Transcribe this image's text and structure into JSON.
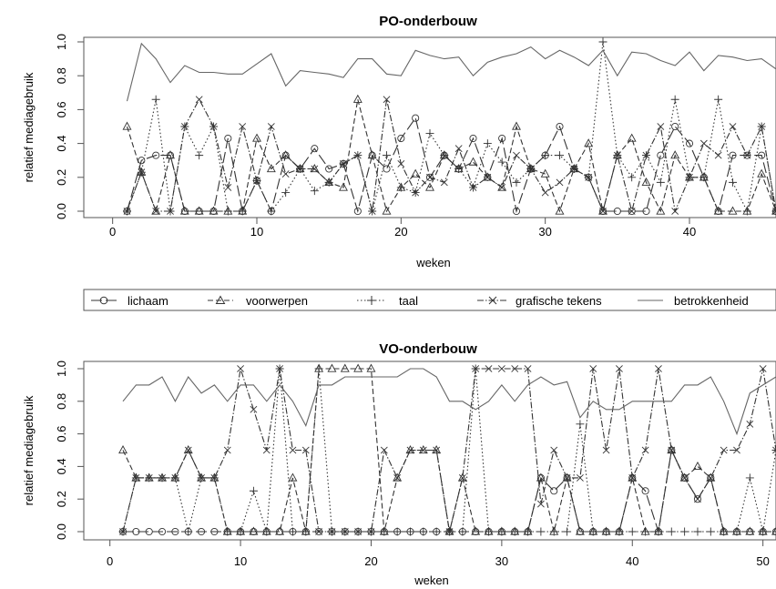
{
  "legend": {
    "items": [
      {
        "name": "lichaam",
        "dash": "12 4",
        "marker": "circle"
      },
      {
        "name": "voorwerpen",
        "dash": "6 3",
        "marker": "triangle"
      },
      {
        "name": "taal",
        "dash": "1.5 2.5",
        "marker": "plus"
      },
      {
        "name": "grafische tekens",
        "dash": "7 2 1.5 2",
        "marker": "cross"
      },
      {
        "name": "betrokkenheid",
        "dash": "",
        "marker": "none"
      }
    ]
  },
  "chart_data": [
    {
      "type": "line",
      "title": "PO-onderbouw",
      "xlabel": "weken",
      "ylabel": "relatief mediagebruik",
      "xlim": [
        -2,
        46
      ],
      "ylim": [
        0,
        1
      ],
      "xticks": [
        0,
        10,
        20,
        30,
        40
      ],
      "yticks": [
        "0.0",
        "0.2",
        "0.4",
        "0.6",
        "0.8",
        "1.0"
      ],
      "x": [
        1,
        2,
        3,
        4,
        5,
        6,
        7,
        8,
        9,
        10,
        11,
        12,
        13,
        14,
        15,
        16,
        17,
        18,
        19,
        20,
        21,
        22,
        23,
        24,
        25,
        26,
        27,
        28,
        29,
        30,
        31,
        32,
        33,
        34,
        35,
        36,
        37,
        38,
        39,
        40,
        41,
        42,
        43,
        44,
        45,
        46
      ],
      "series": [
        {
          "name": "lichaam",
          "values": [
            0,
            0.3,
            0.33,
            0.33,
            0,
            0,
            0,
            0.43,
            0,
            0.18,
            0,
            0.33,
            0.25,
            0.37,
            0.25,
            0.28,
            0,
            0.33,
            0.25,
            0.43,
            0.55,
            0.2,
            0.33,
            0.25,
            0.43,
            0.2,
            0.43,
            0,
            0.25,
            0.33,
            0.5,
            0.25,
            0.2,
            0,
            0,
            0,
            0,
            0.33,
            0.5,
            0.4,
            0.2,
            0,
            0.33,
            0.33,
            0.33,
            0
          ]
        },
        {
          "name": "voorwerpen",
          "values": [
            0.5,
            0.23,
            0,
            0.33,
            0,
            0,
            0,
            0,
            0,
            0.43,
            0.25,
            0.33,
            0.25,
            0.25,
            0.17,
            0.14,
            0.66,
            0.33,
            0,
            0.14,
            0.22,
            0.14,
            0.33,
            0.25,
            0.29,
            0.2,
            0.14,
            0.5,
            0.25,
            0.22,
            0,
            0.25,
            0.4,
            0,
            0.33,
            0.43,
            0.17,
            0,
            0.33,
            0.2,
            0.2,
            0,
            0,
            0,
            0.22,
            0
          ]
        },
        {
          "name": "taal",
          "values": [
            0,
            0.23,
            0.66,
            0,
            0.5,
            0.33,
            0.5,
            0,
            0,
            0.18,
            0,
            0.11,
            0.25,
            0.12,
            0.17,
            0.28,
            0.33,
            0,
            0.33,
            0.14,
            0.11,
            0.46,
            0.33,
            0.25,
            0.14,
            0.4,
            0.29,
            0.17,
            0.25,
            0.33,
            0.33,
            0.25,
            0.2,
            1.0,
            0.33,
            0.2,
            0.33,
            0.17,
            0.66,
            0.2,
            0.2,
            0.66,
            0.17,
            0,
            0.5,
            0
          ]
        },
        {
          "name": "grafische tekens",
          "values": [
            0,
            0.23,
            0,
            0,
            0.5,
            0.66,
            0.5,
            0.14,
            0.5,
            0.18,
            0.5,
            0.22,
            0.25,
            0.25,
            0.17,
            0.28,
            0.33,
            0,
            0.66,
            0.28,
            0.11,
            0.2,
            0.17,
            0.37,
            0.14,
            0.2,
            0.14,
            0.33,
            0.25,
            0.11,
            0.17,
            0.25,
            0.2,
            0,
            0.33,
            0,
            0.33,
            0.5,
            0,
            0.2,
            0.4,
            0.33,
            0.5,
            0.33,
            0.5,
            0
          ]
        },
        {
          "name": "betrokkenheid",
          "values": [
            0.65,
            0.99,
            0.9,
            0.76,
            0.86,
            0.82,
            0.82,
            0.81,
            0.81,
            0.87,
            0.93,
            0.74,
            0.83,
            0.82,
            0.81,
            0.79,
            0.9,
            0.9,
            0.81,
            0.8,
            0.95,
            0.92,
            0.9,
            0.91,
            0.8,
            0.88,
            0.91,
            0.93,
            0.97,
            0.9,
            0.95,
            0.91,
            0.86,
            0.95,
            0.8,
            0.94,
            0.93,
            0.89,
            0.86,
            0.94,
            0.83,
            0.92,
            0.91,
            0.89,
            0.9,
            0.84
          ]
        }
      ]
    },
    {
      "type": "line",
      "title": "VO-onderbouw",
      "xlabel": "weken",
      "ylabel": "relatief mediagebruik",
      "xlim": [
        -2,
        51
      ],
      "ylim": [
        0,
        1
      ],
      "xticks": [
        0,
        10,
        20,
        30,
        40,
        50
      ],
      "yticks": [
        "0.0",
        "0.2",
        "0.4",
        "0.6",
        "0.8",
        "1.0"
      ],
      "x": [
        1,
        2,
        3,
        4,
        5,
        6,
        7,
        8,
        9,
        10,
        11,
        12,
        13,
        14,
        15,
        16,
        17,
        18,
        19,
        20,
        21,
        22,
        23,
        24,
        25,
        26,
        27,
        28,
        29,
        30,
        31,
        32,
        33,
        34,
        35,
        36,
        37,
        38,
        39,
        40,
        41,
        42,
        43,
        44,
        45,
        46,
        47,
        48,
        49,
        50,
        51
      ],
      "series": [
        {
          "name": "lichaam",
          "values": [
            0,
            0,
            0,
            0,
            0,
            0,
            0,
            0,
            0,
            0,
            0,
            0,
            0,
            0,
            0,
            0,
            0,
            0,
            0,
            0,
            0,
            0,
            0,
            0,
            0,
            0,
            0,
            0,
            0,
            0,
            0,
            0,
            0.33,
            0.25,
            0.33,
            0,
            0,
            0,
            0,
            0.33,
            0.25,
            0,
            0.5,
            0.33,
            0.2,
            0.33,
            0,
            0,
            0,
            0,
            0
          ]
        },
        {
          "name": "voorwerpen",
          "values": [
            0.5,
            0.33,
            0.33,
            0.33,
            0.33,
            0.5,
            0.33,
            0.33,
            0,
            0,
            0,
            0,
            0,
            0.33,
            0,
            1.0,
            1.0,
            1.0,
            1.0,
            1.0,
            0,
            0.33,
            0.5,
            0.5,
            0.5,
            0,
            0.33,
            0,
            0,
            0,
            0,
            0,
            0.33,
            0,
            0.33,
            0,
            0,
            0,
            0,
            0.33,
            0,
            0,
            0.5,
            0.33,
            0.4,
            0.33,
            0,
            0,
            0,
            0,
            0
          ]
        },
        {
          "name": "taal",
          "values": [
            0,
            0.33,
            0.33,
            0.33,
            0.33,
            0,
            0.33,
            0.33,
            0,
            0,
            0.25,
            0,
            1.0,
            0,
            0,
            1.0,
            0,
            0,
            0,
            0,
            0,
            0,
            0,
            0,
            0,
            0,
            0,
            1.0,
            0,
            0,
            0,
            0,
            0,
            0,
            0,
            0.66,
            0,
            0,
            0,
            0,
            0,
            0,
            0,
            0,
            0,
            0,
            0,
            0,
            0.33,
            0,
            0.5
          ]
        },
        {
          "name": "grafische tekens",
          "values": [
            0,
            0.33,
            0.33,
            0.33,
            0.33,
            0.5,
            0.33,
            0.33,
            0.5,
            1.0,
            0.75,
            0.5,
            1.0,
            0.5,
            0.5,
            0,
            0,
            0,
            0,
            0,
            0.5,
            0.33,
            0.5,
            0.5,
            0.5,
            0,
            0.33,
            1.0,
            1.0,
            1.0,
            1.0,
            1.0,
            0.17,
            0.5,
            0.33,
            0.33,
            1.0,
            0.5,
            1.0,
            0.33,
            0.5,
            1.0,
            0.5,
            0.33,
            0.2,
            0.33,
            0.5,
            0.5,
            0.66,
            1.0,
            0.5
          ]
        },
        {
          "name": "betrokkenheid",
          "values": [
            0.8,
            0.9,
            0.9,
            0.95,
            0.8,
            0.95,
            0.85,
            0.9,
            0.8,
            0.9,
            0.9,
            0.8,
            0.9,
            0.8,
            0.65,
            0.9,
            0.9,
            0.95,
            0.95,
            0.95,
            0.95,
            0.95,
            1.0,
            1.0,
            0.95,
            0.8,
            0.8,
            0.75,
            0.8,
            0.9,
            0.8,
            0.9,
            0.95,
            0.9,
            0.92,
            0.7,
            0.8,
            0.75,
            0.75,
            0.8,
            0.8,
            0.8,
            0.8,
            0.9,
            0.9,
            0.95,
            0.8,
            0.6,
            0.85,
            0.9,
            0.95
          ]
        }
      ]
    }
  ]
}
